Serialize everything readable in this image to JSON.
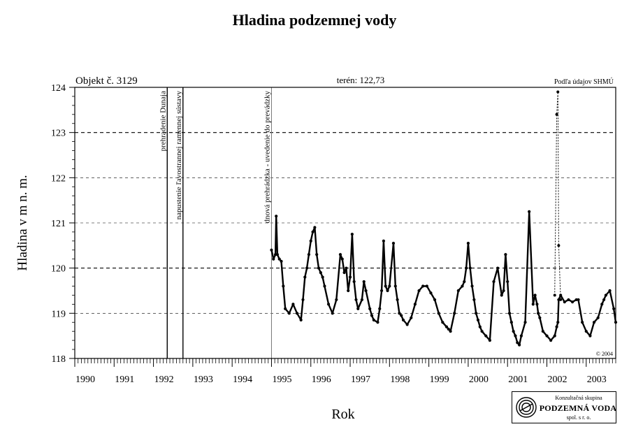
{
  "chart_data": {
    "type": "line",
    "title": "Hladina podzemnej vody",
    "ylabel": "Hladina v m n. m.",
    "xlabel": "Rok",
    "object_label": "Objekt č. 3129",
    "terrain_label": "terén: 122,73",
    "source_label": "Podľa údajov SHMÚ",
    "copyright": "© 2004",
    "ylim": [
      118,
      124
    ],
    "xlim": [
      1990.0,
      2003.75
    ],
    "yticks": [
      118,
      119,
      120,
      121,
      122,
      123,
      124
    ],
    "xticks": [
      1990,
      1991,
      1992,
      1993,
      1994,
      1995,
      1996,
      1997,
      1998,
      1999,
      2000,
      2001,
      2002,
      2003
    ],
    "xtick_labels": [
      "1990",
      "1991",
      "1992",
      "1993",
      "1994",
      "1995",
      "1996",
      "1997",
      "1998",
      "1999",
      "2000",
      "2001",
      "2002",
      "2003"
    ],
    "grid": {
      "horizontal_dashed_at": [
        119,
        120,
        121,
        122,
        123
      ]
    },
    "events": [
      {
        "x": 1992.35,
        "label": "prehradenie Dunaja"
      },
      {
        "x": 1992.75,
        "label": "napustenie ľavostrannej ramennej sústavy"
      },
      {
        "x": 1995.0,
        "label": "dnová prehrádzka - uvedenie do prevádzky"
      }
    ],
    "series": [
      {
        "x": [
          1995.0,
          1995.05,
          1995.1,
          1995.12,
          1995.15,
          1995.2,
          1995.25,
          1995.3,
          1995.35,
          1995.45,
          1995.55,
          1995.65,
          1995.75,
          1995.8,
          1995.85,
          1995.9,
          1995.95,
          1996.0,
          1996.05,
          1996.1,
          1996.15,
          1996.2,
          1996.25,
          1996.3,
          1996.35,
          1996.45,
          1996.55,
          1996.65,
          1996.75,
          1996.8,
          1996.85,
          1996.9,
          1996.95,
          1997.0,
          1997.05,
          1997.1,
          1997.15,
          1997.2,
          1997.3,
          1997.35,
          1997.4,
          1997.5,
          1997.55,
          1997.6,
          1997.7,
          1997.75,
          1997.8,
          1997.85,
          1997.9,
          1997.95,
          1998.0,
          1998.1,
          1998.15,
          1998.2,
          1998.25,
          1998.3,
          1998.35,
          1998.45,
          1998.55,
          1998.65,
          1998.75,
          1998.85,
          1998.95,
          1999.05,
          1999.15,
          1999.25,
          1999.35,
          1999.45,
          1999.5,
          1999.55,
          1999.65,
          1999.75,
          1999.85,
          1999.9,
          1999.95,
          2000.0,
          2000.05,
          2000.1,
          2000.15,
          2000.2,
          2000.25,
          2000.3,
          2000.35,
          2000.45,
          2000.55,
          2000.65,
          2000.75,
          2000.85,
          2000.9,
          2000.95,
          2001.0,
          2001.05,
          2001.1,
          2001.15,
          2001.2,
          2001.25,
          2001.3,
          2001.35,
          2001.45,
          2001.55,
          2001.65,
          2001.7,
          2001.75,
          2001.78,
          2001.82,
          2001.9,
          2002.0,
          2002.1,
          2002.2,
          2002.25,
          2002.28,
          2002.3,
          2002.35,
          2002.45,
          2002.55,
          2002.65,
          2002.75,
          2002.8,
          2002.9,
          2003.0,
          2003.1,
          2003.2,
          2003.3,
          2003.4,
          2003.45,
          2003.5,
          2003.6,
          2003.7,
          2003.75
        ],
        "y": [
          120.4,
          120.2,
          120.3,
          121.15,
          120.3,
          120.2,
          120.15,
          119.6,
          119.1,
          119.0,
          119.2,
          119.0,
          118.85,
          119.3,
          119.8,
          120.0,
          120.3,
          120.6,
          120.8,
          120.9,
          120.3,
          120.0,
          119.9,
          119.8,
          119.6,
          119.2,
          119.0,
          119.3,
          120.3,
          120.2,
          119.9,
          120.0,
          119.5,
          119.8,
          120.75,
          119.7,
          119.3,
          119.1,
          119.3,
          119.7,
          119.5,
          119.1,
          118.95,
          118.85,
          118.8,
          119.1,
          119.5,
          120.6,
          119.6,
          119.5,
          119.6,
          120.55,
          119.6,
          119.3,
          119.0,
          118.95,
          118.85,
          118.75,
          118.9,
          119.2,
          119.5,
          119.6,
          119.6,
          119.45,
          119.3,
          119.0,
          118.8,
          118.7,
          118.65,
          118.6,
          119.0,
          119.5,
          119.6,
          119.7,
          120.0,
          120.55,
          120.0,
          119.6,
          119.3,
          119.0,
          118.85,
          118.7,
          118.6,
          118.5,
          118.4,
          119.7,
          120.0,
          119.4,
          119.5,
          120.3,
          119.7,
          119.0,
          118.8,
          118.6,
          118.5,
          118.35,
          118.3,
          118.5,
          118.8,
          121.25,
          119.2,
          119.4,
          119.2,
          119.0,
          118.9,
          118.6,
          118.5,
          118.4,
          118.5,
          118.7,
          118.8,
          119.3,
          119.4,
          119.25,
          119.3,
          119.25,
          119.3,
          119.3,
          118.8,
          118.6,
          118.5,
          118.8,
          118.9,
          119.2,
          119.3,
          119.4,
          119.5,
          119.1,
          118.8
        ],
        "x2": [
          2002.2,
          2002.25,
          2002.28,
          2002.3,
          2002.35
        ],
        "y2": [
          119.4,
          123.4,
          123.9,
          120.5,
          119.3
        ]
      }
    ]
  },
  "logo": {
    "line1": "Konzultačná skupina",
    "line2": "PODZEMNÁ VODA",
    "line3": "spol. s r. o."
  }
}
